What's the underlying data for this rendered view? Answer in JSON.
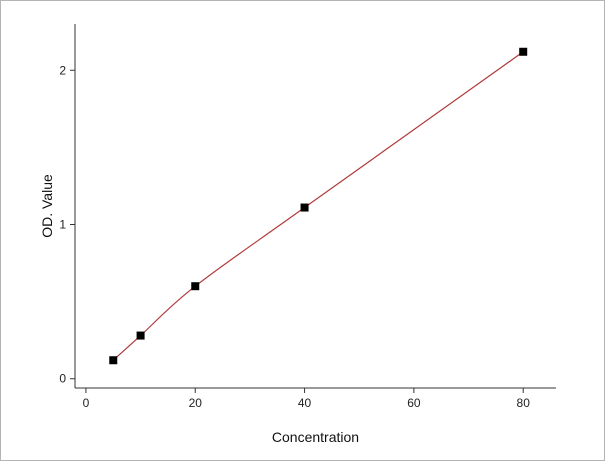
{
  "chart_data": {
    "type": "scatter",
    "title": "",
    "xlabel": "Concentration",
    "ylabel": "OD. Value",
    "xlim": [
      -2,
      86
    ],
    "ylim": [
      -0.06,
      2.3
    ],
    "x_ticks": [
      0,
      20,
      40,
      60,
      80
    ],
    "y_ticks": [
      0,
      1,
      2
    ],
    "grid": false,
    "legend": "none",
    "series": [
      {
        "points": [
          {
            "x": 5,
            "y": 0.12
          },
          {
            "x": 10,
            "y": 0.28
          },
          {
            "x": 20,
            "y": 0.6
          },
          {
            "x": 40,
            "y": 1.11
          },
          {
            "x": 80,
            "y": 2.12
          }
        ],
        "marker": "square",
        "marker_color": "#000000",
        "fit_line_color": "#b03a3a"
      }
    ]
  }
}
